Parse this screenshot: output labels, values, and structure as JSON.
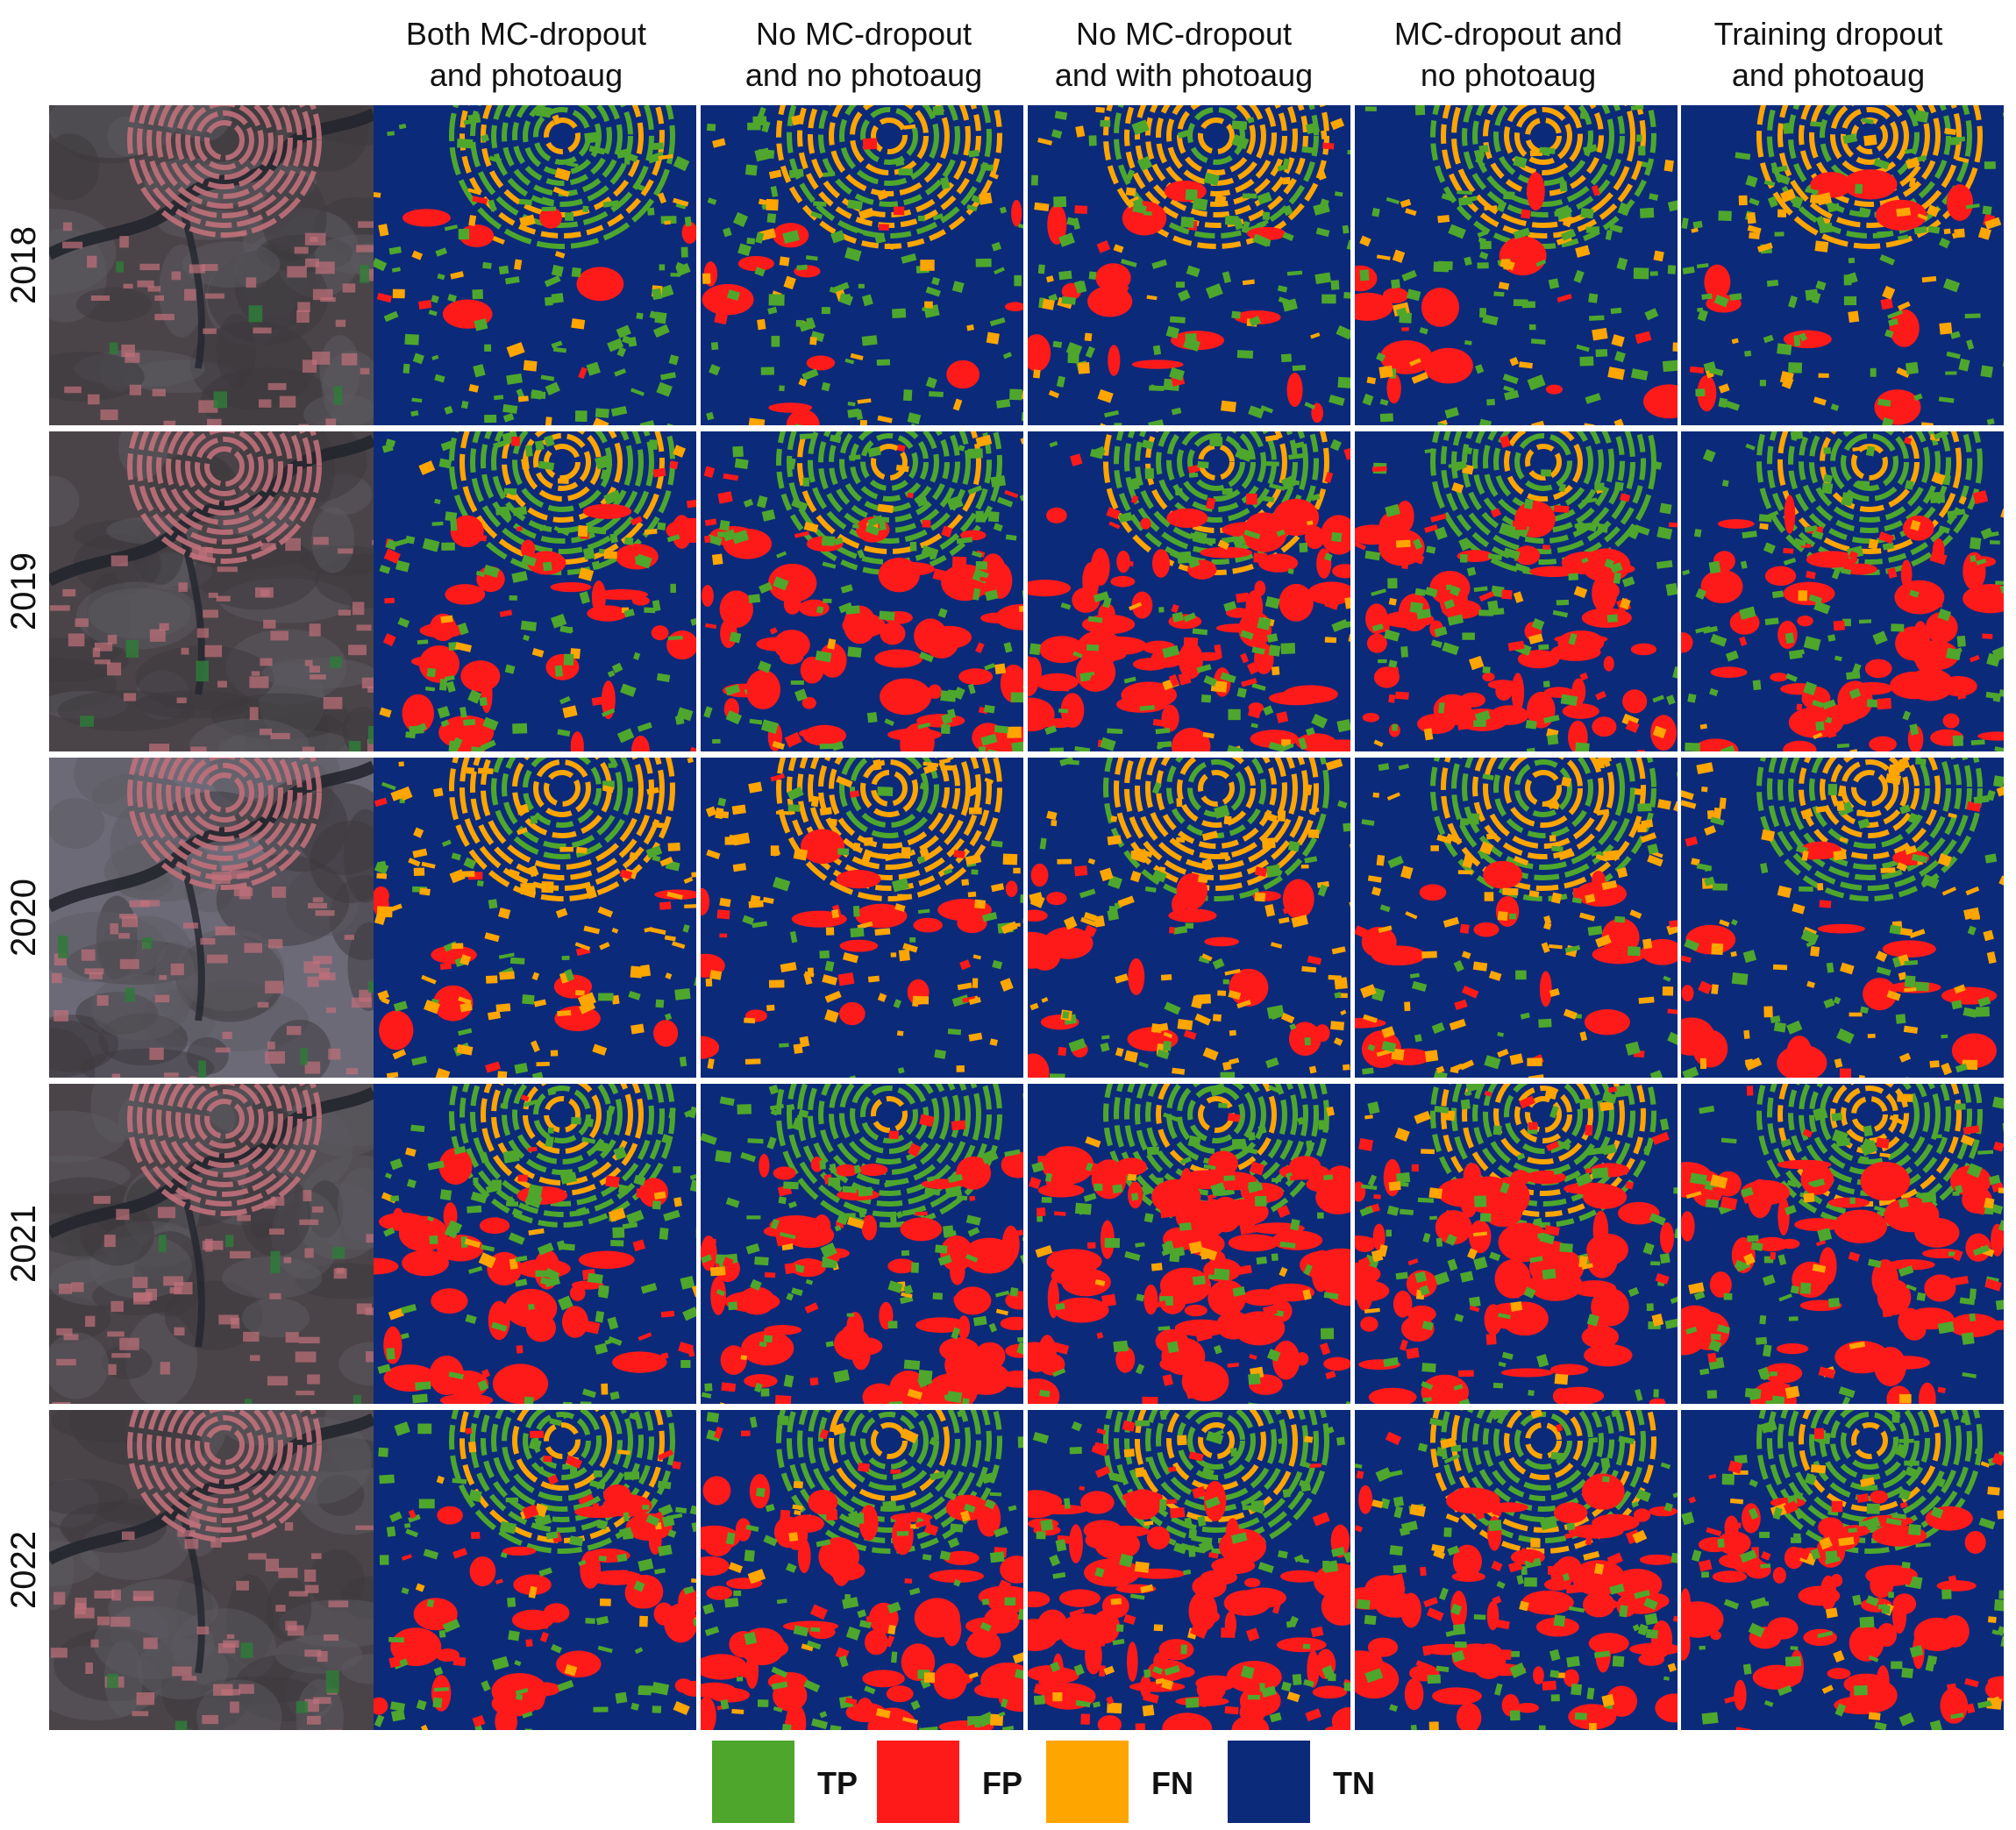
{
  "columns": [
    {
      "header": "Both MC-dropout\nand photoaug"
    },
    {
      "header": "No MC-dropout\nand no photoaug"
    },
    {
      "header": "No MC-dropout\nand with photoaug"
    },
    {
      "header": "MC-dropout and\nno photoaug"
    },
    {
      "header": "Training dropout\nand photoaug"
    }
  ],
  "rows": [
    {
      "year": "2018"
    },
    {
      "year": "2019"
    },
    {
      "year": "2020"
    },
    {
      "year": "2021"
    },
    {
      "year": "2022"
    }
  ],
  "legend": [
    {
      "label": "TP",
      "color": "#4ea72c"
    },
    {
      "label": "FP",
      "color": "#ff1a1a"
    },
    {
      "label": "FN",
      "color": "#ffa500"
    },
    {
      "label": "TN",
      "color": "#0c2a7a"
    }
  ],
  "satellite_colors": {
    "ground": "#4a4448",
    "field": "#c0707a",
    "vegetation": "#2f7a3a",
    "river": "#23262e"
  }
}
